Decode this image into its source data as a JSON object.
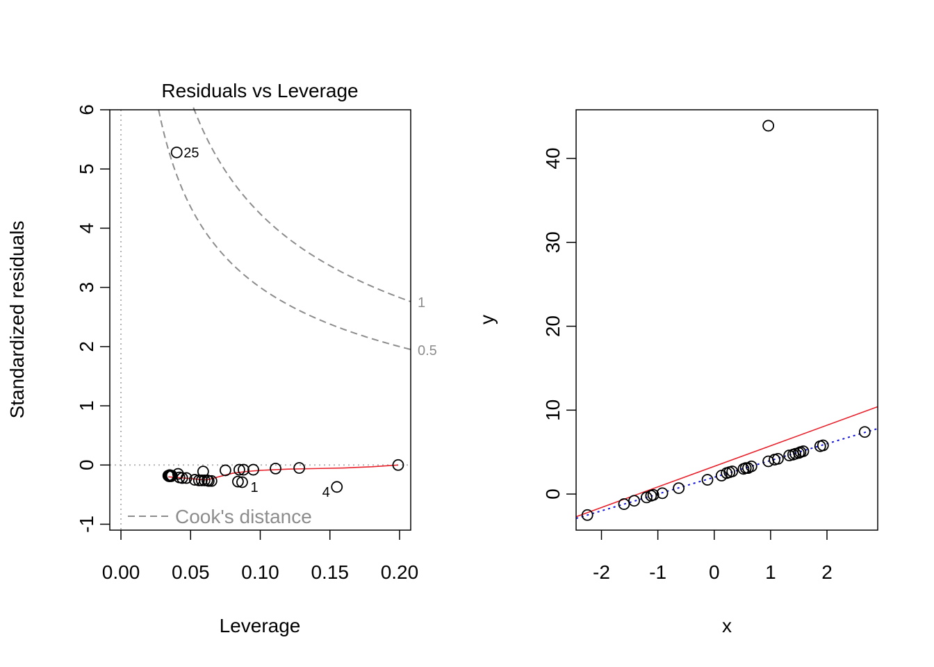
{
  "chart_data": [
    {
      "type": "scatter",
      "title": "Residuals vs Leverage",
      "xlabel": "Leverage",
      "ylabel": "Standardized residuals",
      "xlim": [
        -0.008,
        0.208
      ],
      "ylim": [
        -1.1,
        6.0
      ],
      "xticks": [
        0.0,
        0.05,
        0.1,
        0.15,
        0.2
      ],
      "xtick_labels": [
        "0.00",
        "0.05",
        "0.10",
        "0.15",
        "0.20"
      ],
      "yticks": [
        -1,
        0,
        1,
        2,
        3,
        4,
        5,
        6
      ],
      "ytick_labels": [
        "-1",
        "0",
        "1",
        "2",
        "3",
        "4",
        "5",
        "6"
      ],
      "points": [
        [
          0.034,
          -0.18
        ],
        [
          0.0345,
          -0.19
        ],
        [
          0.035,
          -0.19
        ],
        [
          0.035,
          -0.17
        ],
        [
          0.0355,
          -0.18
        ],
        [
          0.036,
          -0.19
        ],
        [
          0.0365,
          -0.18
        ],
        [
          0.041,
          -0.15
        ],
        [
          0.042,
          -0.21
        ],
        [
          0.044,
          -0.22
        ],
        [
          0.047,
          -0.22
        ],
        [
          0.053,
          -0.25
        ],
        [
          0.056,
          -0.26
        ],
        [
          0.058,
          -0.26
        ],
        [
          0.059,
          -0.11
        ],
        [
          0.06,
          -0.26
        ],
        [
          0.062,
          -0.26
        ],
        [
          0.063,
          -0.27
        ],
        [
          0.065,
          -0.27
        ],
        [
          0.075,
          -0.09
        ],
        [
          0.084,
          -0.28
        ],
        [
          0.085,
          -0.08
        ],
        [
          0.087,
          -0.29
        ],
        [
          0.088,
          -0.08
        ],
        [
          0.095,
          -0.08
        ],
        [
          0.111,
          -0.06
        ],
        [
          0.128,
          -0.05
        ],
        [
          0.155,
          -0.37
        ],
        [
          0.199,
          0.0
        ],
        [
          0.04,
          5.28
        ]
      ],
      "point_labels": [
        {
          "x": 0.04,
          "y": 5.28,
          "text": "25"
        },
        {
          "x": 0.087,
          "y": -0.29,
          "text": "1"
        },
        {
          "x": 0.155,
          "y": -0.37,
          "text": "4"
        }
      ],
      "smooth_line": {
        "color": "#e8202a",
        "x": [
          0.034,
          0.045,
          0.055,
          0.062,
          0.07,
          0.08,
          0.09,
          0.1,
          0.12,
          0.14,
          0.16,
          0.18,
          0.199
        ],
        "y": [
          -0.2,
          -0.22,
          -0.24,
          -0.25,
          -0.2,
          -0.14,
          -0.11,
          -0.09,
          -0.07,
          -0.06,
          -0.05,
          -0.03,
          0.0
        ]
      },
      "cooks_contours": [
        {
          "label": "0.5",
          "level": 0.5,
          "params": 2
        },
        {
          "label": "1",
          "level": 1,
          "params": 2
        }
      ],
      "legend": {
        "text": "Cook's distance",
        "position": "bottom-left"
      },
      "reference_lines": {
        "horizontal": 0,
        "vertical": 0
      },
      "colors": {
        "points": "#000000",
        "smooth": "#e8202a",
        "cooks": "#8c8c8c",
        "reference": "#b3b3b3"
      }
    },
    {
      "type": "scatter",
      "title": "",
      "xlabel": "x",
      "ylabel": "y",
      "xlim": [
        -2.45,
        2.9
      ],
      "ylim": [
        -4.3,
        45.8
      ],
      "xticks": [
        -2,
        -1,
        0,
        1,
        2
      ],
      "xtick_labels": [
        "-2",
        "-1",
        "0",
        "1",
        "2"
      ],
      "yticks": [
        0,
        10,
        20,
        30,
        40
      ],
      "ytick_labels": [
        "0",
        "10",
        "20",
        "30",
        "40"
      ],
      "points": [
        [
          -2.25,
          -2.5
        ],
        [
          -1.6,
          -1.2
        ],
        [
          -1.42,
          -0.8
        ],
        [
          -1.2,
          -0.4
        ],
        [
          -1.12,
          -0.2
        ],
        [
          -1.08,
          -0.1
        ],
        [
          -0.92,
          0.1
        ],
        [
          -0.63,
          0.7
        ],
        [
          -0.12,
          1.7
        ],
        [
          0.13,
          2.2
        ],
        [
          0.22,
          2.5
        ],
        [
          0.27,
          2.6
        ],
        [
          0.32,
          2.7
        ],
        [
          0.52,
          3.0
        ],
        [
          0.56,
          3.1
        ],
        [
          0.6,
          3.1
        ],
        [
          0.66,
          3.3
        ],
        [
          0.96,
          3.9
        ],
        [
          1.07,
          4.1
        ],
        [
          1.13,
          4.2
        ],
        [
          1.33,
          4.6
        ],
        [
          1.4,
          4.7
        ],
        [
          1.44,
          4.8
        ],
        [
          1.5,
          4.9
        ],
        [
          1.53,
          5.0
        ],
        [
          1.58,
          5.1
        ],
        [
          1.88,
          5.7
        ],
        [
          1.93,
          5.8
        ],
        [
          2.67,
          7.4
        ],
        [
          0.96,
          43.9
        ]
      ],
      "lines": [
        {
          "name": "",
          "style": "solid",
          "color": "#e8202a",
          "intercept": 3.3,
          "slope": 2.45
        },
        {
          "name": "",
          "style": "dotted",
          "color": "#1010e0",
          "intercept": 2.0,
          "slope": 2.0
        }
      ]
    }
  ]
}
